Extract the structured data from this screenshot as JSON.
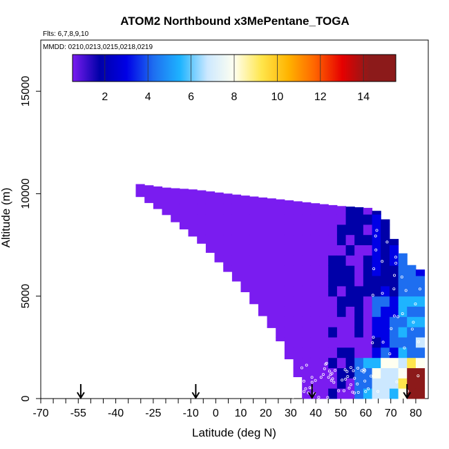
{
  "chart_data": {
    "type": "heatmap",
    "title": "ATOM2 Northbound x3MePentane_TOGA",
    "flights_label": "Flts: 6,7,8,9,10",
    "mmdd_label": "MMDD: 0210,0213,0215,0218,0219",
    "xlabel": "Latitude (deg N)",
    "ylabel": "Altitude (m)",
    "xlim": [
      -70,
      85
    ],
    "ylim": [
      0,
      17500
    ],
    "x_ticks": [
      -70,
      -55,
      -40,
      -25,
      -10,
      0,
      10,
      20,
      30,
      40,
      50,
      60,
      70,
      80
    ],
    "y_ticks": [
      0,
      5000,
      10000,
      15000
    ],
    "colorbar": {
      "min": 0.5,
      "max": 15.5,
      "ticks": [
        2,
        4,
        6,
        8,
        10,
        12,
        14
      ],
      "colors": [
        "#7a1cf0",
        "#0000a8",
        "#0000e6",
        "#1e6ef0",
        "#1eb4ff",
        "#cce8ff",
        "#fffff0",
        "#ffe64d",
        "#ffb400",
        "#ff6400",
        "#e60000",
        "#8c1a1a"
      ]
    },
    "arrows_latitude": [
      -54,
      -8,
      38.5,
      76.5
    ],
    "envelope": {
      "description_free": true,
      "top_edge": [
        [
          -32,
          10500
        ],
        [
          -20,
          10300
        ],
        [
          -8,
          10200
        ],
        [
          5,
          10000
        ],
        [
          20,
          9800
        ],
        [
          35,
          9600
        ],
        [
          50,
          9400
        ],
        [
          62,
          9300
        ],
        [
          67,
          9000
        ],
        [
          70,
          8000
        ],
        [
          73,
          7500
        ],
        [
          76,
          6800
        ],
        [
          80,
          6300
        ]
      ],
      "lower_left_edge": [
        [
          -32,
          10000
        ],
        [
          -20,
          9000
        ],
        [
          -5,
          7500
        ],
        [
          10,
          5500
        ],
        [
          25,
          3000
        ],
        [
          33,
          1000
        ],
        [
          34,
          0
        ]
      ]
    },
    "cell_value_regions": [
      {
        "lat": [
          -32,
          10
        ],
        "value": 0.8
      },
      {
        "lat": [
          10,
          45
        ],
        "value": 1.0
      },
      {
        "lat": [
          45,
          62
        ],
        "value": 1.8
      },
      {
        "lat": [
          62,
          70
        ],
        "value": 3.0
      },
      {
        "lat": [
          70,
          82
        ],
        "value": 4.5
      }
    ]
  }
}
